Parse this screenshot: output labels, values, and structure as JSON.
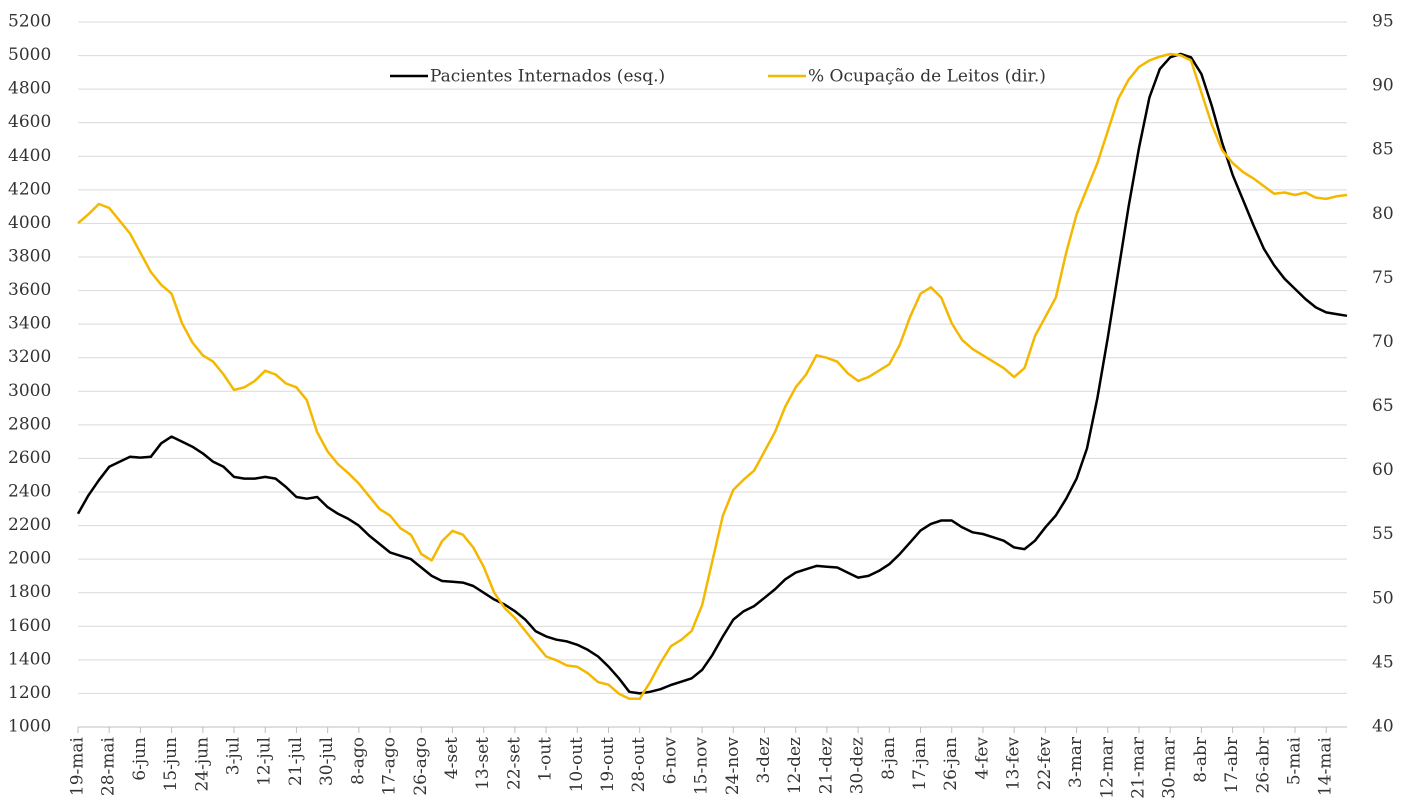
{
  "chart_data": {
    "type": "line",
    "categories": [
      "19-mai",
      null,
      null,
      "28-mai",
      null,
      null,
      "6-jun",
      null,
      null,
      "15-jun",
      null,
      null,
      "24-jun",
      null,
      null,
      "3-jul",
      null,
      null,
      "12-jul",
      null,
      null,
      "21-jul",
      null,
      null,
      "30-jul",
      null,
      null,
      "8-ago",
      null,
      null,
      "17-ago",
      null,
      null,
      "26-ago",
      null,
      null,
      "4-set",
      null,
      null,
      "13-set",
      null,
      null,
      "22-set",
      null,
      null,
      "1-out",
      null,
      null,
      "10-out",
      null,
      null,
      "19-out",
      null,
      null,
      "28-out",
      null,
      null,
      "6-nov",
      null,
      null,
      "15-nov",
      null,
      null,
      "24-nov",
      null,
      null,
      "3-dez",
      null,
      null,
      "12-dez",
      null,
      null,
      "21-dez",
      null,
      null,
      "30-dez",
      null,
      null,
      "8-jan",
      null,
      null,
      "17-jan",
      null,
      null,
      "26-jan",
      null,
      null,
      "4-fev",
      null,
      null,
      "13-fev",
      null,
      null,
      "22-fev",
      null,
      null,
      "3-mar",
      null,
      null,
      "12-mar",
      null,
      null,
      "21-mar",
      null,
      null,
      "30-mar",
      null,
      null,
      "8-abr",
      null,
      null,
      "17-abr",
      null,
      null,
      "26-abr",
      null,
      null,
      "5-mai",
      null,
      null,
      "14-mai",
      null,
      null
    ],
    "series": [
      {
        "name": "Pacientes Internados (esq.)",
        "color": "#000000",
        "values": [
          2270,
          2380,
          2470,
          2550,
          2580,
          2610,
          2605,
          2610,
          2690,
          2730,
          2700,
          2670,
          2630,
          2580,
          2550,
          2490,
          2480,
          2480,
          2490,
          2480,
          2430,
          2370,
          2360,
          2370,
          2310,
          2270,
          2240,
          2200,
          2140,
          2090,
          2040,
          2020,
          2000,
          1950,
          1900,
          1870,
          1865,
          1860,
          1840,
          1800,
          1760,
          1730,
          1690,
          1640,
          1570,
          1540,
          1520,
          1510,
          1490,
          1460,
          1420,
          1360,
          1290,
          1210,
          1200,
          1210,
          1225,
          1250,
          1270,
          1290,
          1340,
          1430,
          1540,
          1640,
          1690,
          1720,
          1770,
          1820,
          1880,
          1920,
          1940,
          1960,
          1955,
          1950,
          1920,
          1890,
          1900,
          1930,
          1970,
          2030,
          2100,
          2170,
          2210,
          2230,
          2230,
          2190,
          2160,
          2150,
          2130,
          2110,
          2070,
          2060,
          2110,
          2190,
          2260,
          2360,
          2480,
          2660,
          2960,
          3320,
          3710,
          4100,
          4450,
          4750,
          4920,
          4990,
          5010,
          4990,
          4890,
          4700,
          4480,
          4290,
          4140,
          3990,
          3850,
          3750,
          3670,
          3610,
          3550,
          3500,
          3470,
          3460,
          3450
        ]
      },
      {
        "name": "% Ocupação de Leitos (dir.)",
        "color": "#f5b800",
        "axis": "y2",
        "values": [
          79.3,
          80.0,
          80.8,
          80.5,
          79.5,
          78.5,
          77,
          75.5,
          74.5,
          73.8,
          71.5,
          70,
          69,
          68.5,
          67.5,
          66.3,
          66.5,
          67,
          67.8,
          67.5,
          66.8,
          66.5,
          65.5,
          63,
          61.5,
          60.5,
          59.8,
          59,
          58,
          57,
          56.5,
          55.5,
          55,
          53.5,
          53,
          54.5,
          55.3,
          55,
          54,
          52.5,
          50.5,
          49.3,
          48.5,
          47.5,
          46.5,
          45.5,
          45.2,
          44.8,
          44.7,
          44.2,
          43.5,
          43.3,
          42.6,
          42.2,
          42.2,
          43.5,
          45,
          46.3,
          46.8,
          47.5,
          49.5,
          53,
          56.5,
          58.5,
          59.3,
          60,
          61.5,
          63,
          65,
          66.5,
          67.5,
          69,
          68.8,
          68.5,
          67.6,
          67,
          67.3,
          67.8,
          68.3,
          69.8,
          72,
          73.8,
          74.3,
          73.5,
          71.5,
          70.2,
          69.5,
          69,
          68.5,
          68,
          67.3,
          68,
          70.5,
          72,
          73.5,
          77,
          80,
          82,
          84,
          86.5,
          89,
          90.5,
          91.5,
          92,
          92.3,
          92.5,
          92.4,
          92,
          89.5,
          87,
          85,
          84,
          83.3,
          82.8,
          82.2,
          81.6,
          81.7,
          81.5,
          81.7,
          81.3,
          81.2,
          81.4,
          81.5
        ]
      }
    ],
    "ylim": [
      1000,
      5200
    ],
    "yticks": [
      1000,
      1200,
      1400,
      1600,
      1800,
      2000,
      2200,
      2400,
      2600,
      2800,
      3000,
      3200,
      3400,
      3600,
      3800,
      4000,
      4200,
      4400,
      4600,
      4800,
      5000,
      5200
    ],
    "y2lim": [
      40,
      95
    ],
    "y2ticks": [
      40,
      45,
      50,
      55,
      60,
      65,
      70,
      75,
      80,
      85,
      90,
      95
    ],
    "grid": true,
    "legend": "top"
  }
}
